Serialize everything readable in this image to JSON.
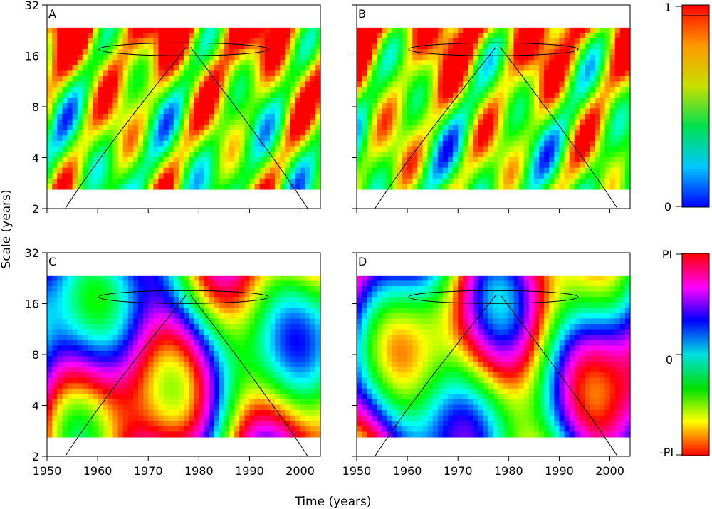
{
  "figure": {
    "ylabel": "Scale (years)",
    "xlabel": "Time (years)"
  },
  "chart_data": [
    {
      "type": "heatmap",
      "panel": "A",
      "title": "A",
      "x_ticks": [
        1950,
        1960,
        1970,
        1980,
        1990,
        2000
      ],
      "y_ticks": [
        2,
        4,
        8,
        16,
        32
      ],
      "y_scale": "log2",
      "xlim": [
        1950,
        2004
      ],
      "ylim": [
        2,
        32
      ],
      "color_scale": "coherence"
    },
    {
      "type": "heatmap",
      "panel": "B",
      "title": "B",
      "x_ticks": [
        1950,
        1960,
        1970,
        1980,
        1990,
        2000
      ],
      "y_ticks": [
        2,
        4,
        8,
        16,
        32
      ],
      "y_scale": "log2",
      "xlim": [
        1950,
        2004
      ],
      "ylim": [
        2,
        32
      ],
      "color_scale": "coherence"
    },
    {
      "type": "heatmap",
      "panel": "C",
      "title": "C",
      "x_ticks": [
        1950,
        1960,
        1970,
        1980,
        1990,
        2000
      ],
      "x_tick_labels": [
        "1950",
        "1960",
        "1970",
        "1980",
        "1990",
        "2000"
      ],
      "y_ticks": [
        2,
        4,
        8,
        16,
        32
      ],
      "y_scale": "log2",
      "xlim": [
        1950,
        2004
      ],
      "ylim": [
        2,
        32
      ],
      "color_scale": "phase"
    },
    {
      "type": "heatmap",
      "panel": "D",
      "title": "D",
      "x_ticks": [
        1950,
        1960,
        1970,
        1980,
        1990,
        2000
      ],
      "x_tick_labels": [
        "1950",
        "1960",
        "1970",
        "1980",
        "1990",
        "2000"
      ],
      "y_ticks": [
        2,
        4,
        8,
        16,
        32
      ],
      "y_scale": "log2",
      "xlim": [
        1950,
        2004
      ],
      "ylim": [
        2,
        32
      ],
      "color_scale": "phase"
    }
  ],
  "colorbars": {
    "coherence": {
      "min_label": "0",
      "max_label": "1",
      "min": 0,
      "max": 1
    },
    "phase": {
      "min_label": "-PI",
      "mid_label": "0",
      "max_label": "PI"
    }
  },
  "colors": {
    "axis": "#000000",
    "mask": "#ffffff"
  }
}
